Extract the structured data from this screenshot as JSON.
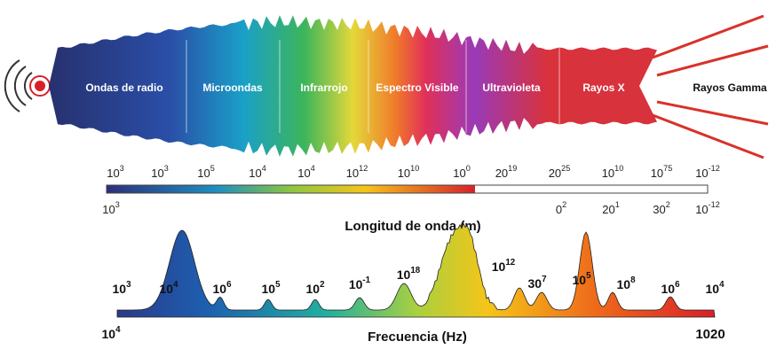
{
  "bands": [
    "Ondas de radio",
    "Microondas",
    "Infrarrojo",
    "Espectro Visible",
    "Ultravioleta",
    "Rayos X",
    "Rayos Gamma"
  ],
  "wavelength": {
    "top_labels": [
      {
        "base": "10",
        "exp": "3"
      },
      {
        "base": "10",
        "exp": "3"
      },
      {
        "base": "10",
        "exp": "5"
      },
      {
        "base": "10",
        "exp": "4"
      },
      {
        "base": "10",
        "exp": "4"
      },
      {
        "base": "10",
        "exp": "12"
      },
      {
        "base": "10",
        "exp": "10"
      },
      {
        "base": "10",
        "exp": "0"
      },
      {
        "base": "20",
        "exp": "19"
      },
      {
        "base": "20",
        "exp": "25"
      },
      {
        "base": "10",
        "exp": "10"
      },
      {
        "base": "10",
        "exp": "75"
      },
      {
        "base": "10",
        "exp": "-12"
      }
    ],
    "bottom_labels": [
      {
        "base": "10",
        "exp": "3"
      },
      {
        "base": "0",
        "exp": "2"
      },
      {
        "base": "20",
        "exp": "1"
      },
      {
        "base": "30",
        "exp": "2"
      },
      {
        "base": "10",
        "exp": "-12"
      }
    ],
    "title": "Longitud de onda (m)"
  },
  "frequency": {
    "top_labels": [
      {
        "base": "10",
        "exp": "3"
      },
      {
        "base": "10",
        "exp": "4"
      },
      {
        "base": "10",
        "exp": "6"
      },
      {
        "base": "10",
        "exp": "5"
      },
      {
        "base": "10",
        "exp": "2"
      },
      {
        "base": "10",
        "exp": "-1"
      },
      {
        "base": "10",
        "exp": "18"
      },
      {
        "base": "10",
        "exp": "12"
      },
      {
        "base": "30",
        "exp": "7"
      },
      {
        "base": "10",
        "exp": "5"
      },
      {
        "base": "10",
        "exp": "8"
      },
      {
        "base": "10",
        "exp": "6"
      },
      {
        "base": "10",
        "exp": "4"
      }
    ],
    "left_label": {
      "base": "10",
      "exp": "4"
    },
    "right_label": "1020",
    "title": "Frecuencia (Hz)"
  }
}
